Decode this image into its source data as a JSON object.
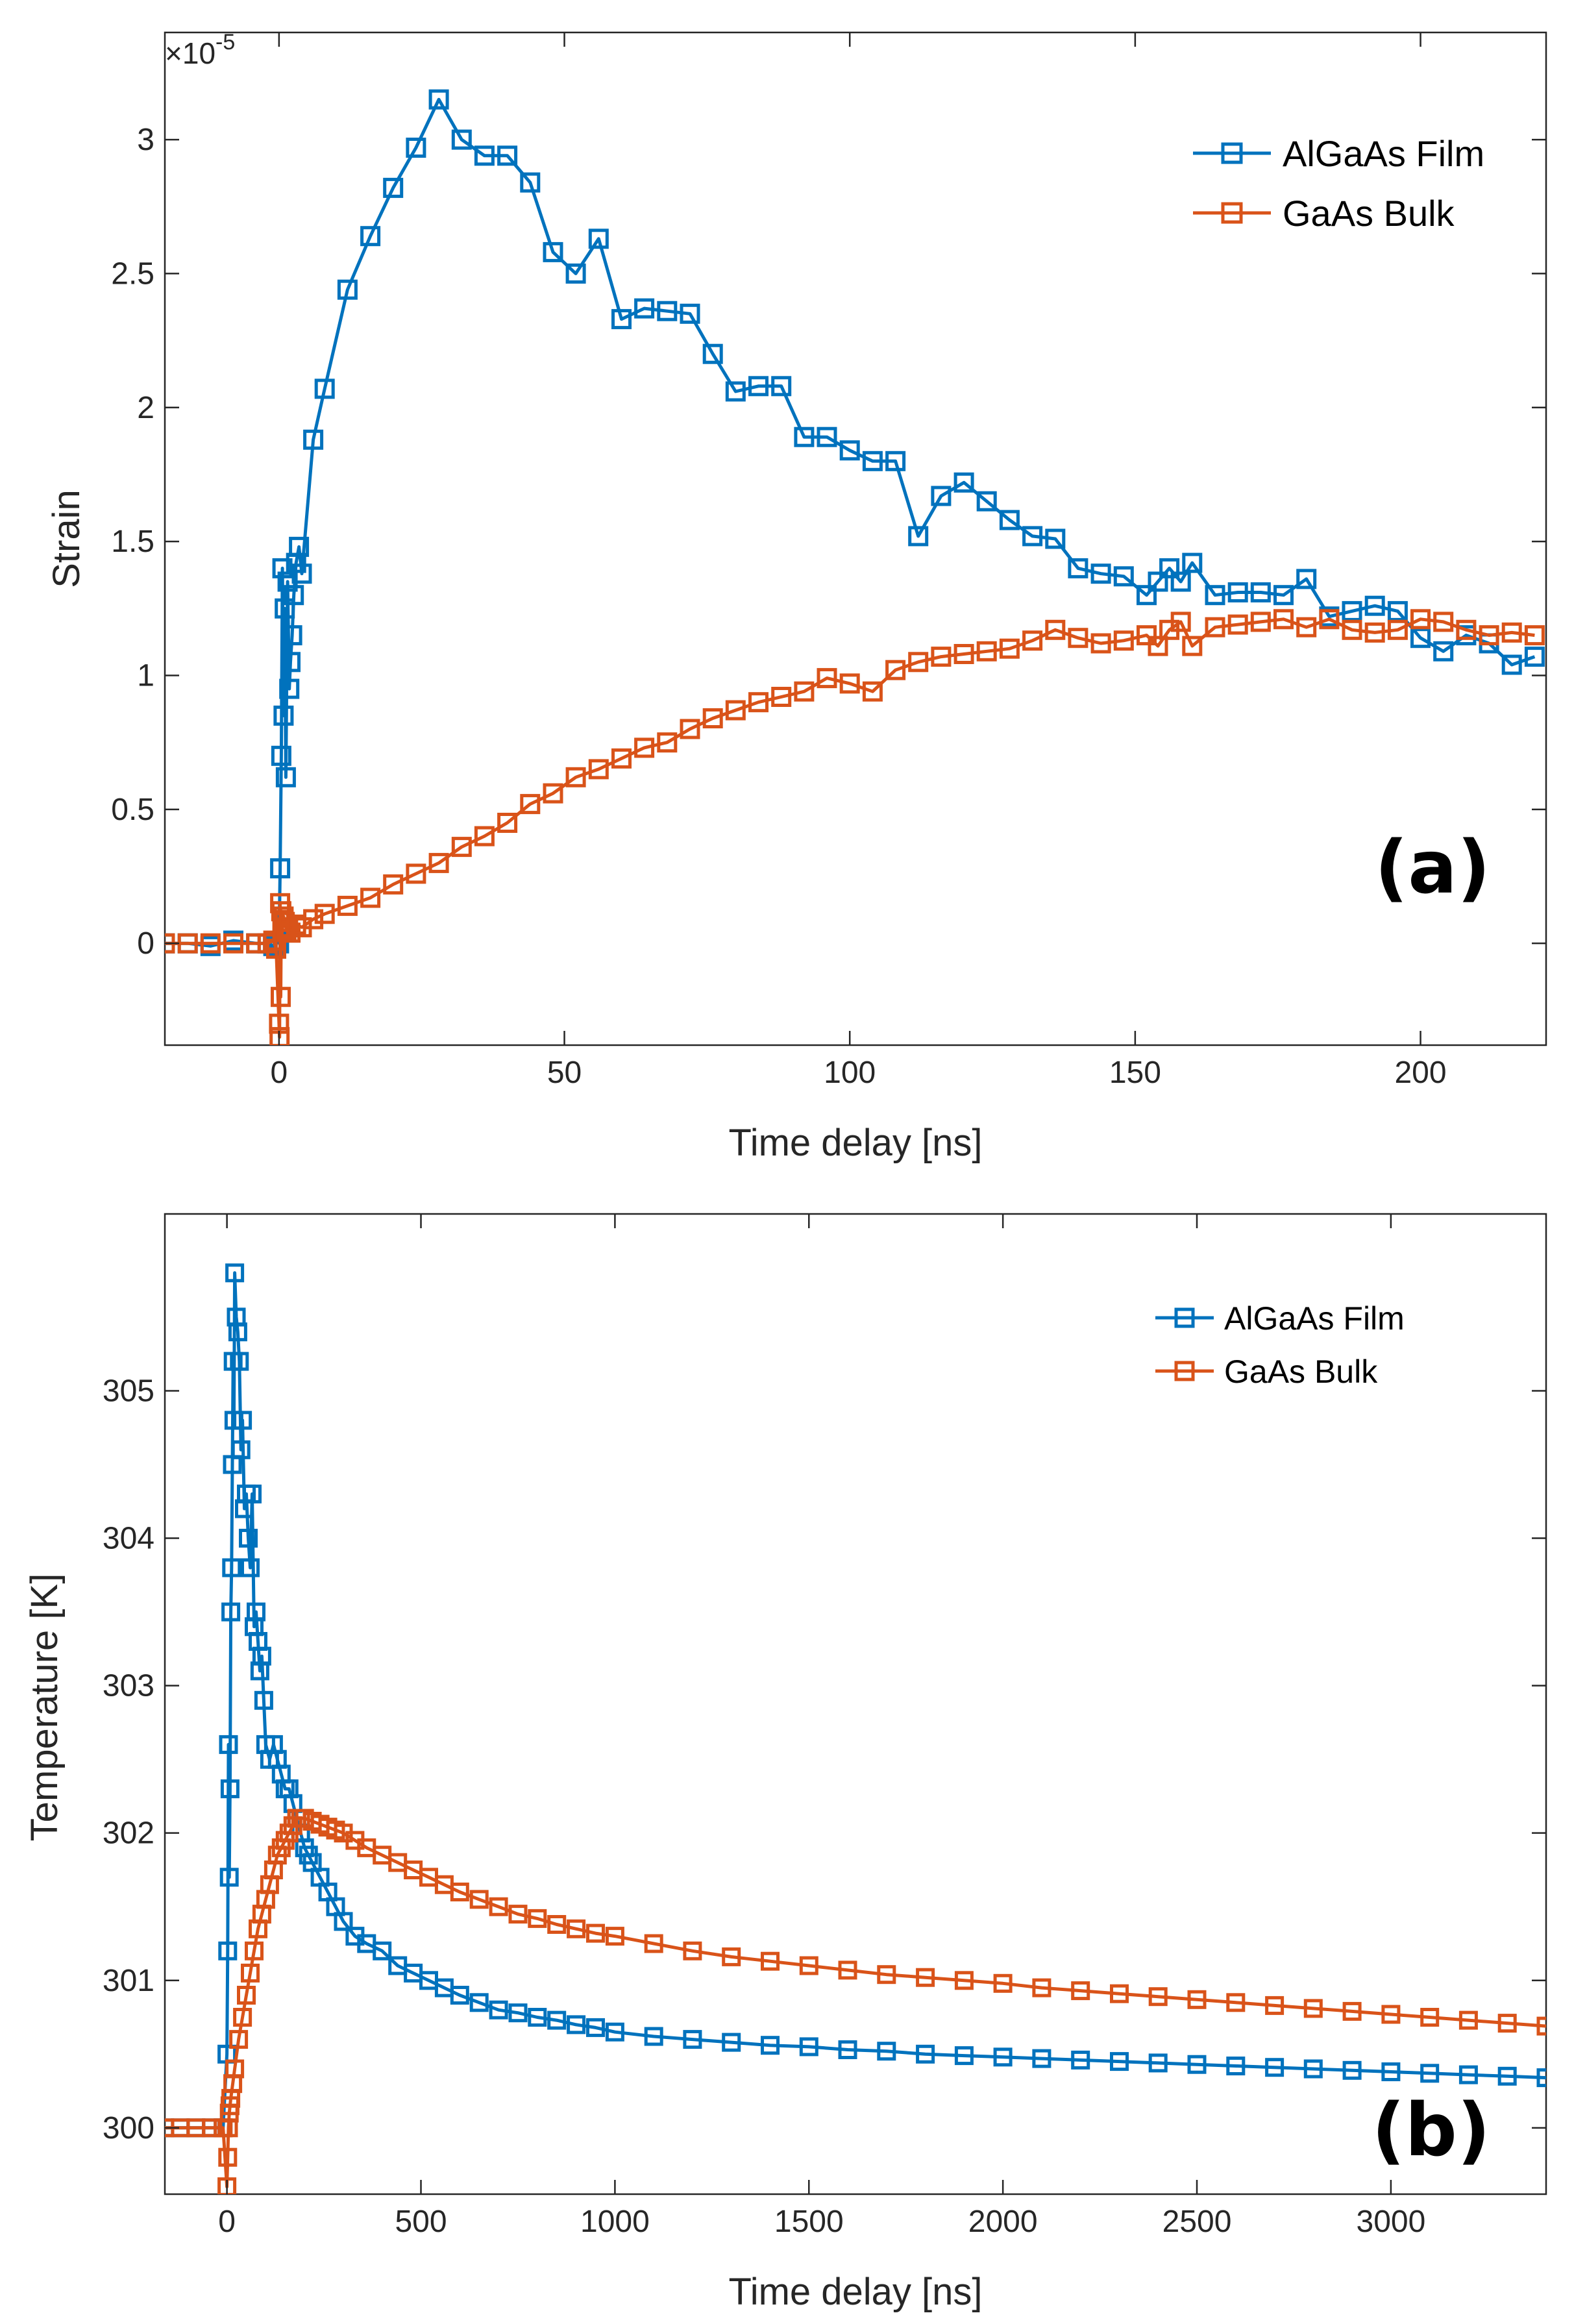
{
  "chart_data": [
    {
      "type": "line",
      "panel_label": "(a)",
      "xlabel": "Time delay [ns]",
      "ylabel": "Strain",
      "y_exponent_prefix": "×10",
      "y_exponent": "-5",
      "xlim": [
        -20,
        222
      ],
      "ylim": [
        -0.38,
        3.4
      ],
      "xticks": [
        0,
        50,
        100,
        150,
        200
      ],
      "yticks": [
        0,
        0.5,
        1,
        1.5,
        2,
        2.5,
        3
      ],
      "xtick_labels": [
        "0",
        "50",
        "100",
        "150",
        "200"
      ],
      "ytick_labels": [
        "0",
        "0.5",
        "1",
        "1.5",
        "2",
        "2.5",
        "3"
      ],
      "legend_position": "top-right",
      "series": [
        {
          "name": "AlGaAs Film",
          "color": "#0072BD",
          "x": [
            -20,
            -16,
            -12,
            -8,
            -4,
            -2,
            -1,
            -0.5,
            0,
            0.2,
            0.4,
            0.6,
            0.8,
            1,
            1.2,
            1.5,
            1.8,
            2,
            2.3,
            2.6,
            3,
            3.5,
            4,
            6,
            8,
            12,
            16,
            20,
            24,
            28,
            32,
            36,
            40,
            44,
            48,
            52,
            56,
            60,
            64,
            68,
            72,
            76,
            80,
            84,
            88,
            92,
            96,
            100,
            104,
            108,
            112,
            116,
            120,
            124,
            128,
            132,
            136,
            140,
            144,
            148,
            152,
            154,
            156,
            158,
            160,
            164,
            168,
            172,
            176,
            180,
            184,
            188,
            192,
            196,
            200,
            204,
            208,
            212,
            216,
            220
          ],
          "y": [
            0,
            0,
            -0.01,
            0.01,
            0,
            0,
            -0.01,
            0.01,
            0,
            0.28,
            0.7,
            1.4,
            0.85,
            1.25,
            0.62,
            1.35,
            0.95,
            1.05,
            1.15,
            1.3,
            1.42,
            1.48,
            1.38,
            1.88,
            2.07,
            2.44,
            2.64,
            2.82,
            2.97,
            3.15,
            3.0,
            2.94,
            2.94,
            2.84,
            2.58,
            2.5,
            2.63,
            2.33,
            2.37,
            2.36,
            2.35,
            2.2,
            2.06,
            2.08,
            2.08,
            1.89,
            1.89,
            1.84,
            1.8,
            1.8,
            1.52,
            1.67,
            1.72,
            1.65,
            1.58,
            1.52,
            1.51,
            1.4,
            1.38,
            1.37,
            1.3,
            1.35,
            1.4,
            1.35,
            1.42,
            1.3,
            1.31,
            1.31,
            1.3,
            1.36,
            1.22,
            1.24,
            1.26,
            1.24,
            1.14,
            1.09,
            1.15,
            1.12,
            1.04,
            1.07
          ]
        },
        {
          "name": "GaAs Bulk",
          "color": "#D95319",
          "x": [
            -20,
            -16,
            -12,
            -8,
            -4,
            -2,
            -1,
            -0.5,
            0,
            0.1,
            0.2,
            0.3,
            0.4,
            0.6,
            0.8,
            1,
            1.3,
            1.6,
            2,
            3,
            4,
            6,
            8,
            12,
            16,
            20,
            24,
            28,
            32,
            36,
            40,
            44,
            48,
            52,
            56,
            60,
            64,
            68,
            72,
            76,
            80,
            84,
            88,
            92,
            96,
            100,
            104,
            108,
            112,
            116,
            120,
            124,
            128,
            132,
            136,
            140,
            144,
            148,
            152,
            154,
            156,
            158,
            160,
            164,
            168,
            172,
            176,
            180,
            184,
            188,
            192,
            196,
            200,
            204,
            208,
            212,
            216,
            220
          ],
          "y": [
            0,
            0,
            0,
            0,
            0,
            0,
            0.01,
            -0.02,
            -0.3,
            -0.35,
            0.15,
            -0.2,
            0.12,
            0.05,
            0.1,
            0.08,
            0.05,
            0.06,
            0.04,
            0.07,
            0.06,
            0.09,
            0.11,
            0.14,
            0.17,
            0.22,
            0.26,
            0.3,
            0.36,
            0.4,
            0.45,
            0.52,
            0.56,
            0.62,
            0.65,
            0.69,
            0.73,
            0.75,
            0.8,
            0.84,
            0.87,
            0.9,
            0.92,
            0.94,
            0.99,
            0.97,
            0.94,
            1.02,
            1.05,
            1.07,
            1.08,
            1.09,
            1.1,
            1.13,
            1.17,
            1.14,
            1.12,
            1.13,
            1.15,
            1.11,
            1.17,
            1.2,
            1.11,
            1.18,
            1.19,
            1.2,
            1.21,
            1.18,
            1.21,
            1.17,
            1.16,
            1.17,
            1.21,
            1.2,
            1.17,
            1.15,
            1.16,
            1.15
          ]
        }
      ]
    },
    {
      "type": "line",
      "panel_label": "(b)",
      "xlabel": "Time delay [ns]",
      "ylabel": "Temperature [K]",
      "xlim": [
        -160,
        3400
      ],
      "ylim": [
        299.55,
        306.2
      ],
      "xticks": [
        0,
        500,
        1000,
        1500,
        2000,
        2500,
        3000
      ],
      "yticks": [
        300,
        301,
        302,
        303,
        304,
        305
      ],
      "xtick_labels": [
        "0",
        "500",
        "1000",
        "1500",
        "2000",
        "2500",
        "3000"
      ],
      "ytick_labels": [
        "300",
        "301",
        "302",
        "303",
        "304",
        "305"
      ],
      "legend_position": "top-right",
      "series": [
        {
          "name": "AlGaAs Film",
          "color": "#0072BD",
          "x": [
            -160,
            -120,
            -80,
            -40,
            -10,
            0,
            2,
            4,
            6,
            8,
            10,
            12,
            14,
            16,
            18,
            20,
            24,
            28,
            32,
            36,
            40,
            45,
            50,
            55,
            60,
            65,
            70,
            75,
            80,
            85,
            90,
            95,
            100,
            110,
            120,
            130,
            140,
            150,
            160,
            170,
            180,
            190,
            200,
            210,
            220,
            240,
            260,
            280,
            300,
            330,
            360,
            400,
            440,
            480,
            520,
            560,
            600,
            650,
            700,
            750,
            800,
            850,
            900,
            950,
            1000,
            1100,
            1200,
            1300,
            1400,
            1500,
            1600,
            1700,
            1800,
            1900,
            2000,
            2100,
            2200,
            2300,
            2400,
            2500,
            2600,
            2700,
            2800,
            2900,
            3000,
            3100,
            3200,
            3300,
            3400
          ],
          "y": [
            300.0,
            300.0,
            300.0,
            300.0,
            300.0,
            300.5,
            301.2,
            302.6,
            301.7,
            302.3,
            303.5,
            303.8,
            304.5,
            305.2,
            304.8,
            305.8,
            305.5,
            305.4,
            305.2,
            304.6,
            304.8,
            304.2,
            304.3,
            304.0,
            303.8,
            304.3,
            303.4,
            303.5,
            303.3,
            303.1,
            303.2,
            302.9,
            302.6,
            302.5,
            302.6,
            302.5,
            302.4,
            302.3,
            302.3,
            302.2,
            302.1,
            302.0,
            301.9,
            301.85,
            301.8,
            301.7,
            301.6,
            301.5,
            301.4,
            301.3,
            301.25,
            301.2,
            301.1,
            301.05,
            301.0,
            300.95,
            300.9,
            300.85,
            300.8,
            300.78,
            300.75,
            300.73,
            300.7,
            300.68,
            300.65,
            300.62,
            300.6,
            300.58,
            300.56,
            300.55,
            300.53,
            300.52,
            300.5,
            300.49,
            300.48,
            300.47,
            300.46,
            300.45,
            300.44,
            300.43,
            300.42,
            300.41,
            300.4,
            300.39,
            300.38,
            300.37,
            300.36,
            300.35,
            300.34
          ]
        },
        {
          "name": "GaAs Bulk",
          "color": "#D95319",
          "x": [
            -160,
            -120,
            -80,
            -40,
            -10,
            0,
            2,
            4,
            6,
            8,
            10,
            15,
            20,
            30,
            40,
            50,
            60,
            70,
            80,
            90,
            100,
            110,
            120,
            130,
            140,
            150,
            160,
            170,
            180,
            190,
            200,
            220,
            240,
            260,
            280,
            300,
            330,
            360,
            400,
            440,
            480,
            520,
            560,
            600,
            650,
            700,
            750,
            800,
            850,
            900,
            950,
            1000,
            1100,
            1200,
            1300,
            1400,
            1500,
            1600,
            1700,
            1800,
            1900,
            2000,
            2100,
            2200,
            2300,
            2400,
            2500,
            2600,
            2700,
            2800,
            2900,
            3000,
            3100,
            3200,
            3300,
            3400
          ],
          "y": [
            300.0,
            300.0,
            300.0,
            300.0,
            300.0,
            299.6,
            299.8,
            300.0,
            300.1,
            300.15,
            300.2,
            300.3,
            300.4,
            300.6,
            300.75,
            300.9,
            301.05,
            301.2,
            301.35,
            301.45,
            301.55,
            301.65,
            301.75,
            301.85,
            301.9,
            301.95,
            302.0,
            302.05,
            302.1,
            302.1,
            302.1,
            302.08,
            302.06,
            302.04,
            302.02,
            302.0,
            301.95,
            301.9,
            301.85,
            301.8,
            301.75,
            301.7,
            301.65,
            301.6,
            301.55,
            301.5,
            301.45,
            301.42,
            301.38,
            301.35,
            301.32,
            301.3,
            301.25,
            301.2,
            301.16,
            301.13,
            301.1,
            301.07,
            301.04,
            301.02,
            301.0,
            300.98,
            300.95,
            300.93,
            300.91,
            300.89,
            300.87,
            300.85,
            300.83,
            300.81,
            300.79,
            300.77,
            300.75,
            300.73,
            300.71,
            300.69
          ]
        }
      ]
    }
  ]
}
